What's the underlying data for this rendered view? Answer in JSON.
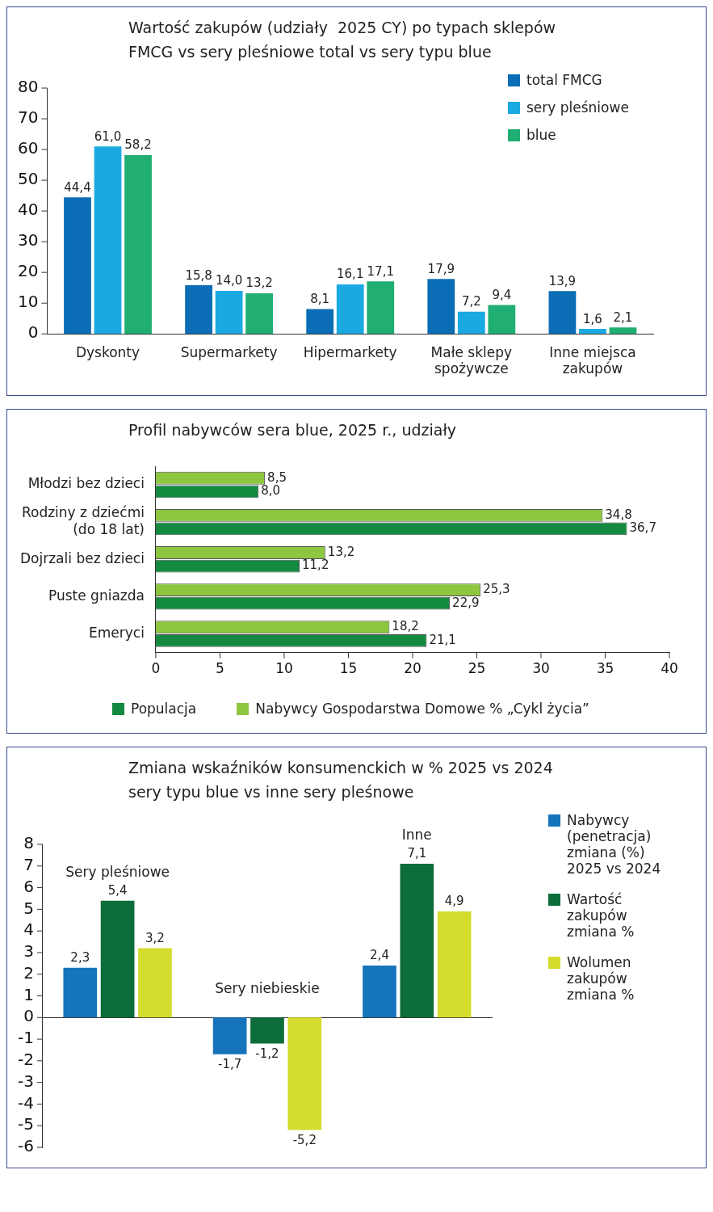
{
  "chart_data": [
    {
      "type": "bar",
      "title": "Wartość zakupów (udziały  2025 CY) po typach sklepów FMCG vs sery pleśniowe total vs sery typu blue",
      "categories": [
        "Dyskonty",
        "Supermarkety",
        "Hipermarkety",
        "Małe sklepy spożywcze",
        "Inne miejsca zakupów"
      ],
      "series": [
        {
          "name": "total FMCG",
          "color": "#0a6db5",
          "values": [
            44.4,
            15.8,
            8.1,
            17.9,
            13.9
          ],
          "value_labels": [
            "44,4",
            "15,8",
            "8,1",
            "17,9",
            "13,9"
          ]
        },
        {
          "name": "sery pleśniowe",
          "color": "#1ba9e2",
          "values": [
            61.0,
            14.0,
            16.1,
            7.2,
            1.6
          ],
          "value_labels": [
            "61,0",
            "14,0",
            "16,1",
            "7,2",
            "1,6"
          ]
        },
        {
          "name": "blue",
          "color": "#20ae72",
          "values": [
            58.2,
            13.2,
            17.1,
            9.4,
            2.1
          ],
          "value_labels": [
            "58,2",
            "13,2",
            "17,1",
            "9,4",
            "2,1"
          ]
        }
      ],
      "ylim": [
        0,
        80
      ],
      "yticks": [
        0,
        10,
        20,
        30,
        40,
        50,
        60,
        70,
        80
      ],
      "legend": "top right"
    },
    {
      "type": "bar",
      "orientation": "horizontal",
      "title": "Profil nabywców sera blue, 2025 r., udziały",
      "categories": [
        "Młodzi bez dzieci",
        "Rodziny z dziećmi (do 18 lat)",
        "Dojrzali bez dzieci",
        "Puste gniazda",
        "Emeryci"
      ],
      "series": [
        {
          "name": "Nabywcy Gospodarstwa Domowe % „Cykl życia”",
          "color": "#8dc63f",
          "values": [
            8.5,
            34.8,
            13.2,
            25.3,
            18.2
          ],
          "value_labels": [
            "8,5",
            "34,8",
            "13,2",
            "25,3",
            "18,2"
          ]
        },
        {
          "name": "Populacja",
          "color": "#138a3f",
          "values": [
            8.0,
            36.7,
            11.2,
            22.9,
            21.1
          ],
          "value_labels": [
            "8,0",
            "36,7",
            "11,2",
            "22,9",
            "21,1"
          ]
        }
      ],
      "xlim": [
        0,
        40
      ],
      "xticks": [
        0,
        5,
        10,
        15,
        20,
        25,
        30,
        35,
        40
      ],
      "legend": "bottom"
    },
    {
      "type": "bar",
      "title": "Zmiana wskaźników konsumenckich w % 2025 vs 2024 sery typu blue vs inne sery pleśnowe",
      "categories": [
        "Sery pleśniowe",
        "Sery niebieskie",
        "Inne"
      ],
      "series": [
        {
          "name": "Nabywcy (penetracja) zmiana (%) 2025 vs 2024",
          "color": "#1574bb",
          "values": [
            2.3,
            -1.7,
            2.4
          ],
          "value_labels": [
            "2,3",
            "-1,7",
            "2,4"
          ]
        },
        {
          "name": "Wartość zakupów zmiana %",
          "color": "#0c6d3b",
          "values": [
            5.4,
            -1.2,
            7.1
          ],
          "value_labels": [
            "5,4",
            "-1,2",
            "7,1"
          ]
        },
        {
          "name": "Wolumen zakupów zmiana %",
          "color": "#d4dc2d",
          "values": [
            3.2,
            -5.2,
            4.9
          ],
          "value_labels": [
            "3,2",
            "-5,2",
            "4,9"
          ]
        }
      ],
      "ylim": [
        -6,
        8
      ],
      "yticks": [
        -6,
        -5,
        -4,
        -3,
        -2,
        -1,
        0,
        1,
        2,
        3,
        4,
        5,
        6,
        7,
        8
      ],
      "legend": "right"
    }
  ]
}
